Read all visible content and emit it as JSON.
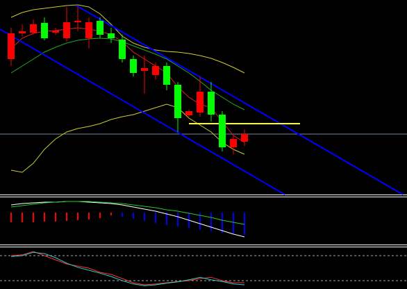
{
  "chart_data": [
    {
      "type": "candlestick",
      "categories": [
        null,
        null,
        null,
        null,
        null,
        null,
        null,
        null,
        null,
        null,
        null,
        null,
        null,
        null,
        null,
        null,
        null,
        null,
        null,
        null,
        null,
        null
      ],
      "open": [
        195,
        232,
        233,
        247,
        233,
        225,
        248,
        225,
        250,
        232,
        223,
        195,
        178,
        172,
        185,
        158,
        114,
        118,
        148,
        115,
        68,
        76
      ],
      "high": [
        240,
        245,
        252,
        255,
        240,
        270,
        270,
        255,
        255,
        240,
        230,
        200,
        200,
        190,
        190,
        162,
        122,
        170,
        162,
        120,
        85,
        94
      ],
      "low": [
        185,
        228,
        230,
        222,
        230,
        220,
        235,
        210,
        225,
        218,
        190,
        170,
        145,
        165,
        150,
        90,
        112,
        112,
        105,
        62,
        58,
        70
      ],
      "close": [
        232,
        235,
        245,
        225,
        236,
        248,
        250,
        248,
        230,
        225,
        195,
        175,
        182,
        185,
        158,
        110,
        120,
        148,
        115,
        68,
        80,
        87
      ],
      "up_color": "#ff0000",
      "down_color": "#00ff00",
      "ylim": [
        0,
        280
      ],
      "lines": [
        {
          "color": "#cccc33",
          "values": [
            255,
            262,
            266,
            268,
            270,
            272,
            273,
            270,
            260,
            245,
            228,
            218,
            212,
            208,
            206,
            205,
            203,
            200,
            196,
            190,
            183,
            175
          ]
        },
        {
          "color": "#cccc33",
          "values": [
            35,
            32,
            45,
            65,
            80,
            90,
            95,
            98,
            102,
            108,
            112,
            115,
            120,
            125,
            130,
            125,
            110,
            100,
            90,
            75,
            65,
            58
          ]
        },
        {
          "color": "#22aa22",
          "values": [
            175,
            185,
            195,
            205,
            212,
            218,
            222,
            224,
            225,
            224,
            220,
            214,
            208,
            202,
            195,
            185,
            175,
            163,
            150,
            140,
            130,
            122
          ]
        },
        {
          "color": "#dd2222",
          "values": [
            210,
            225,
            232,
            235,
            236,
            238,
            240,
            238,
            235,
            230,
            220,
            205,
            195,
            185,
            175,
            155,
            140,
            130,
            125,
            105,
            85,
            75
          ]
        }
      ],
      "trendlines": [
        {
          "color": "#0000ff",
          "x": [
            5.875,
            35.25
          ],
          "values": [
            272,
            0
          ]
        },
        {
          "color": "#0000ff",
          "x": [
            -1,
            24.625
          ],
          "values": [
            238,
            0
          ]
        },
        {
          "color": "#ffff00",
          "x": [
            16,
            26
          ],
          "values": [
            102,
            102
          ]
        }
      ],
      "hlines": [
        {
          "value": 87,
          "color": "#778899"
        }
      ]
    },
    {
      "type": "macd",
      "categories": [
        null,
        null,
        null,
        null,
        null,
        null,
        null,
        null,
        null,
        null,
        null,
        null,
        null,
        null,
        null,
        null,
        null,
        null,
        null,
        null,
        null,
        null
      ],
      "ylim": [
        -45,
        22
      ],
      "histogram": {
        "values": [
          -14,
          -14,
          -14,
          -13,
          -13,
          -12,
          -11,
          -10,
          -8,
          -4,
          -6,
          -9,
          -12,
          -15,
          -18,
          -20,
          -22,
          -25,
          -27,
          -29,
          -30,
          -32
        ],
        "colors": [
          "#ff0000",
          "#ff0000",
          "#ff0000",
          "#ff0000",
          "#ff0000",
          "#ff0000",
          "#ff0000",
          "#ff0000",
          "#ff0000",
          "#ff0000",
          "#0000ff",
          "#0000ff",
          "#0000ff",
          "#0000ff",
          "#0000ff",
          "#0000ff",
          "#0000ff",
          "#0000ff",
          "#0000ff",
          "#0000ff",
          "#0000ff",
          "#0000ff"
        ]
      },
      "lines": [
        {
          "color": "#ffffff",
          "values": [
            11,
            13,
            14,
            15,
            15,
            16,
            16,
            15,
            14,
            13,
            11,
            8,
            5,
            2,
            -2,
            -6,
            -11,
            -16,
            -21,
            -26,
            -31,
            -35
          ]
        },
        {
          "color": "#22cc22",
          "values": [
            8,
            10,
            12,
            14,
            15,
            16,
            16,
            16,
            15,
            14,
            13,
            11,
            9,
            7,
            4,
            2,
            -1,
            -4,
            -7,
            -11,
            -14,
            -17
          ]
        }
      ]
    },
    {
      "type": "line",
      "categories": [
        null,
        null,
        null,
        null,
        null,
        null,
        null,
        null,
        null,
        null,
        null,
        null,
        null,
        null,
        null,
        null,
        null,
        null,
        null,
        null,
        null,
        null
      ],
      "ylim": [
        0,
        100
      ],
      "levels": [
        20,
        80
      ],
      "lines": [
        {
          "color": "#ff3333",
          "values": [
            80,
            82,
            90,
            80,
            70,
            60,
            55,
            50,
            40,
            35,
            25,
            15,
            10,
            12,
            15,
            18,
            20,
            25,
            28,
            20,
            15,
            15
          ]
        },
        {
          "color": "#33cccc",
          "values": [
            78,
            80,
            88,
            85,
            75,
            62,
            52,
            45,
            38,
            30,
            20,
            12,
            8,
            10,
            14,
            17,
            22,
            28,
            22,
            18,
            12,
            10
          ]
        }
      ]
    }
  ]
}
